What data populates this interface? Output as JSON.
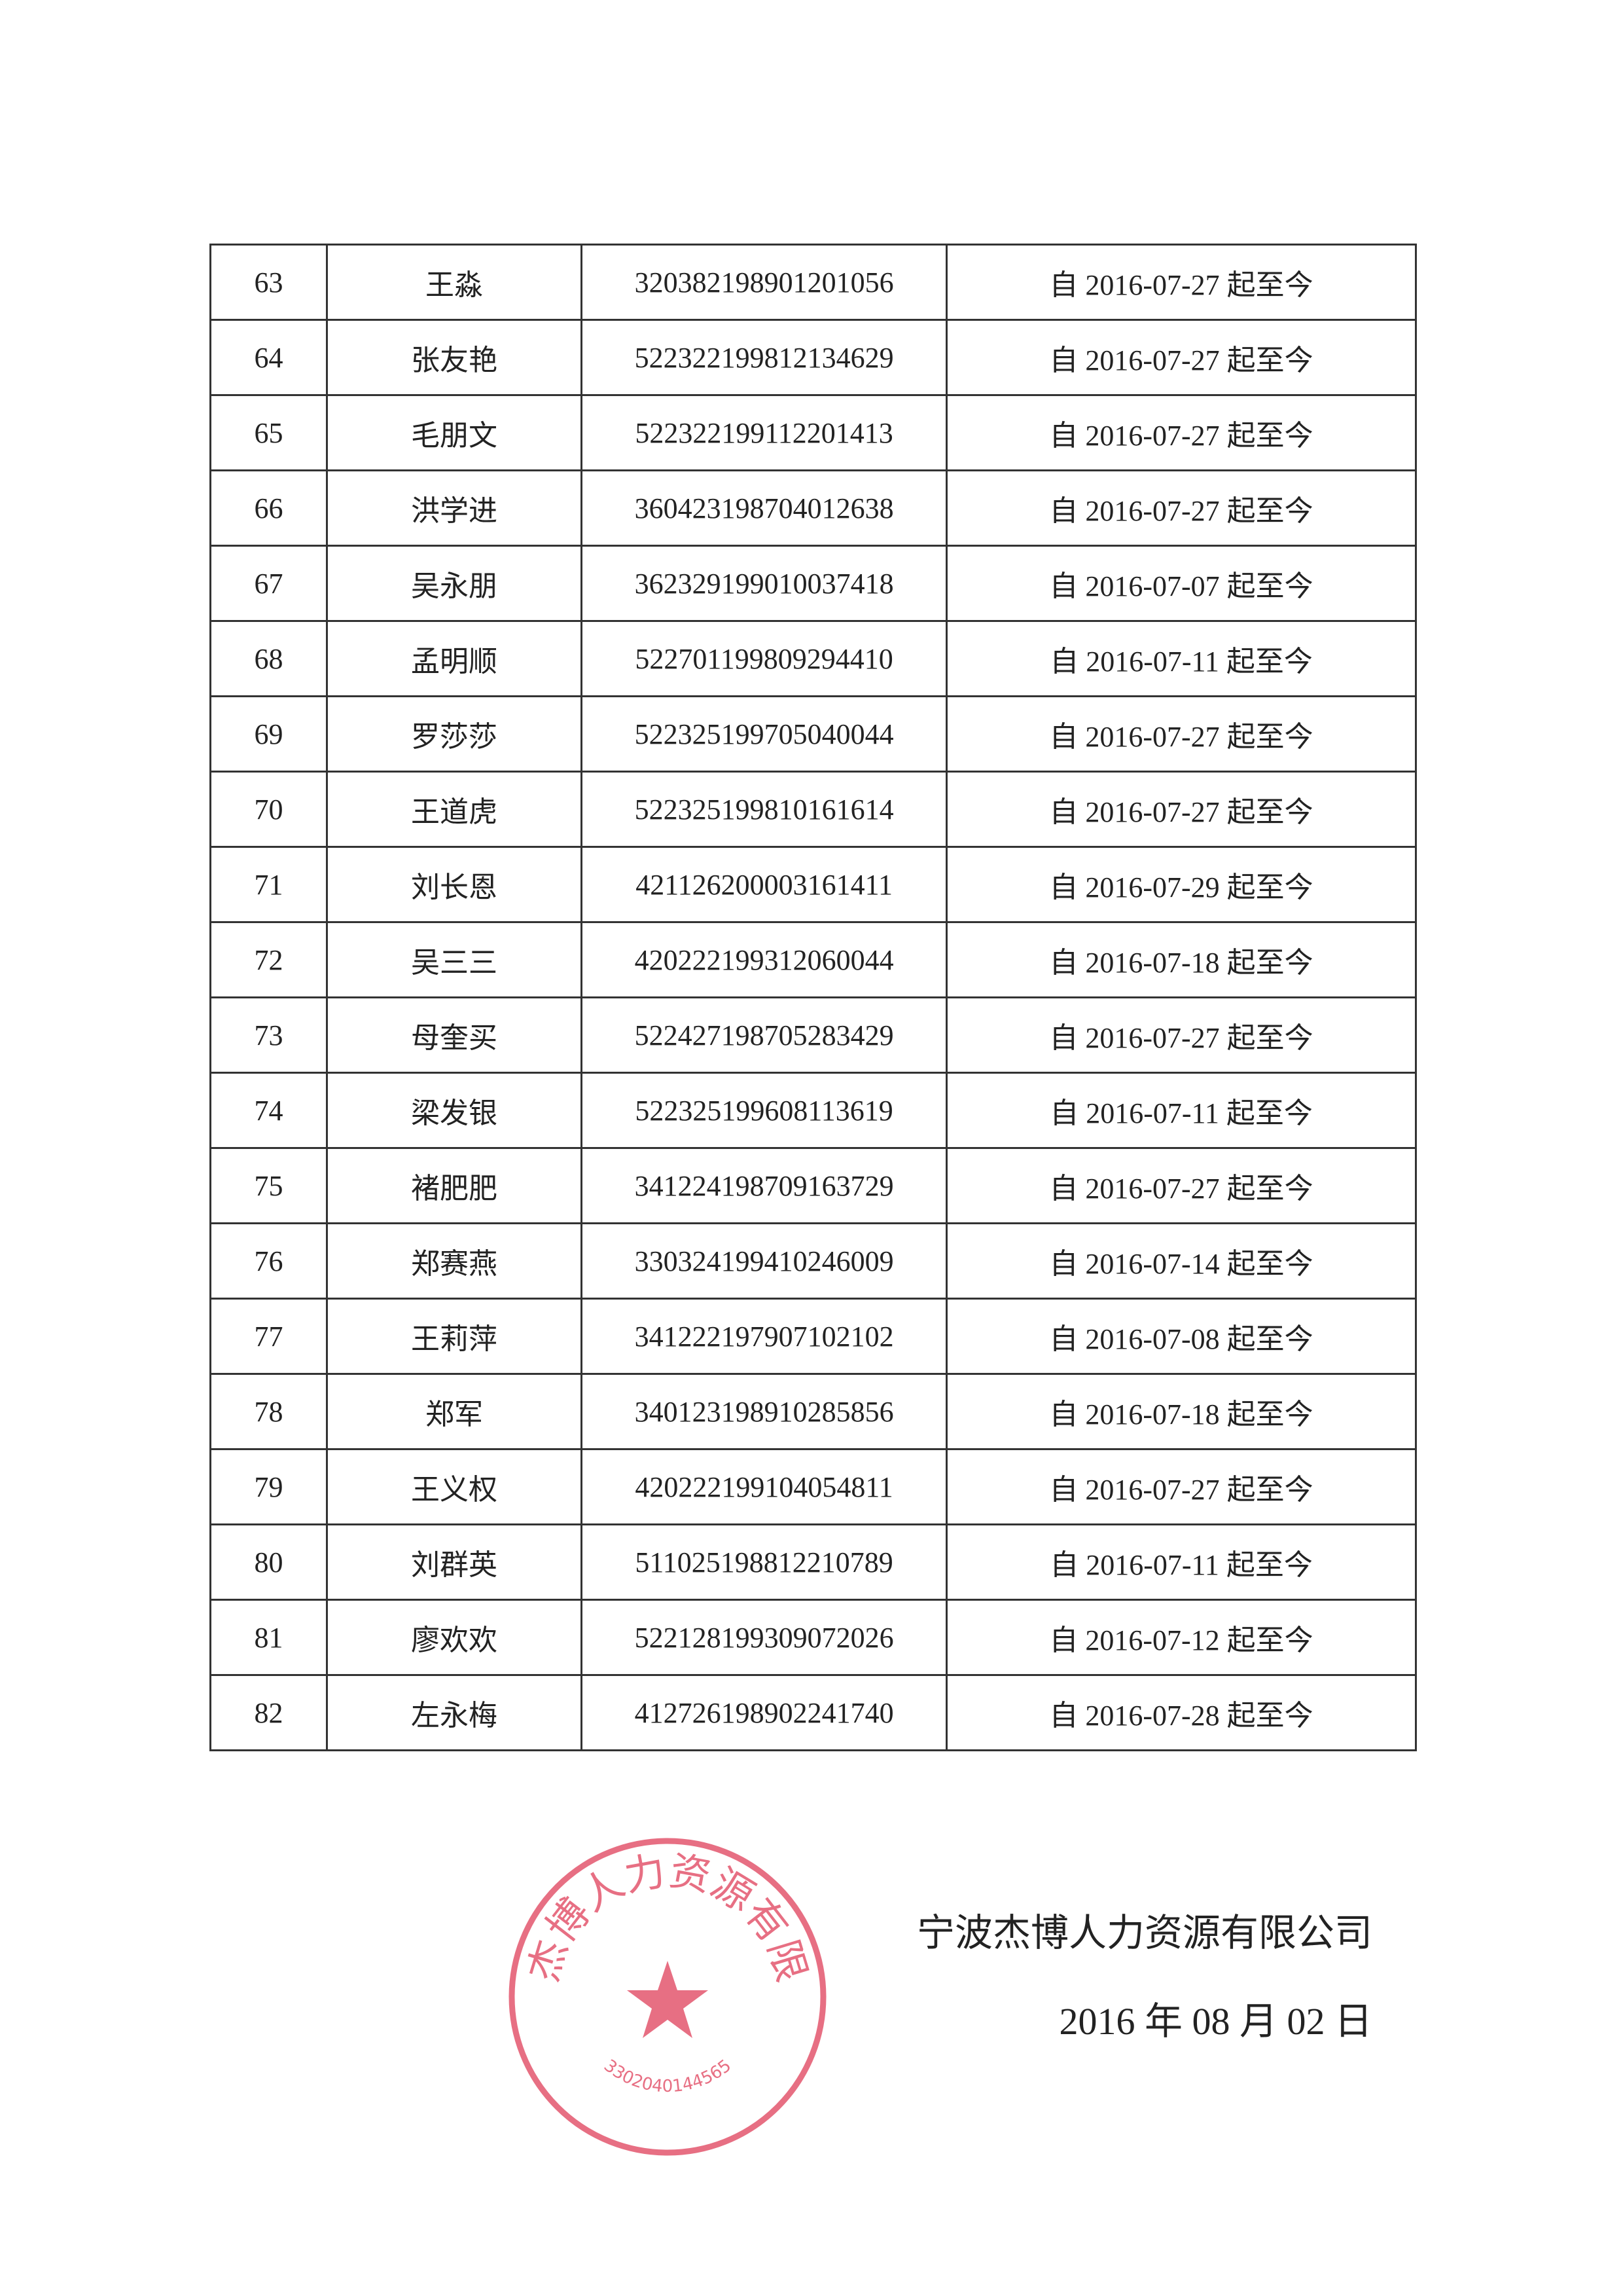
{
  "rows": [
    {
      "no": "63",
      "name": "王淼",
      "id": "320382198901201056",
      "period": "自 2016-07-27 起至今"
    },
    {
      "no": "64",
      "name": "张友艳",
      "id": "522322199812134629",
      "period": "自 2016-07-27 起至今"
    },
    {
      "no": "65",
      "name": "毛朋文",
      "id": "522322199112201413",
      "period": "自 2016-07-27 起至今"
    },
    {
      "no": "66",
      "name": "洪学进",
      "id": "360423198704012638",
      "period": "自 2016-07-27 起至今"
    },
    {
      "no": "67",
      "name": "吴永朋",
      "id": "362329199010037418",
      "period": "自 2016-07-07 起至今"
    },
    {
      "no": "68",
      "name": "孟明顺",
      "id": "522701199809294410",
      "period": "自 2016-07-11 起至今"
    },
    {
      "no": "69",
      "name": "罗莎莎",
      "id": "522325199705040044",
      "period": "自 2016-07-27 起至今"
    },
    {
      "no": "70",
      "name": "王道虎",
      "id": "522325199810161614",
      "period": "自 2016-07-27 起至今"
    },
    {
      "no": "71",
      "name": "刘长恩",
      "id": "421126200003161411",
      "period": "自 2016-07-29 起至今"
    },
    {
      "no": "72",
      "name": "吴三三",
      "id": "420222199312060044",
      "period": "自 2016-07-18 起至今"
    },
    {
      "no": "73",
      "name": "母奎买",
      "id": "522427198705283429",
      "period": "自 2016-07-27 起至今"
    },
    {
      "no": "74",
      "name": "梁发银",
      "id": "522325199608113619",
      "period": "自 2016-07-11 起至今"
    },
    {
      "no": "75",
      "name": "褚肥肥",
      "id": "341224198709163729",
      "period": "自 2016-07-27 起至今"
    },
    {
      "no": "76",
      "name": "郑赛燕",
      "id": "330324199410246009",
      "period": "自 2016-07-14 起至今"
    },
    {
      "no": "77",
      "name": "王莉萍",
      "id": "341222197907102102",
      "period": "自 2016-07-08 起至今"
    },
    {
      "no": "78",
      "name": "郑军",
      "id": "340123198910285856",
      "period": "自 2016-07-18 起至今"
    },
    {
      "no": "79",
      "name": "王义权",
      "id": "420222199104054811",
      "period": "自 2016-07-27 起至今"
    },
    {
      "no": "80",
      "name": "刘群英",
      "id": "511025198812210789",
      "period": "自 2016-07-11 起至今"
    },
    {
      "no": "81",
      "name": "廖欢欢",
      "id": "522128199309072026",
      "period": "自 2016-07-12 起至今"
    },
    {
      "no": "82",
      "name": "左永梅",
      "id": "412726198902241740",
      "period": "自 2016-07-28 起至今"
    }
  ],
  "signature": {
    "company": "宁波杰博人力资源有限公司",
    "date": "2016 年 08 月 02 日"
  },
  "stamp": {
    "text": "宁波杰博人力资源有限公司",
    "number": "3302040144565",
    "color": "#e0405a"
  }
}
